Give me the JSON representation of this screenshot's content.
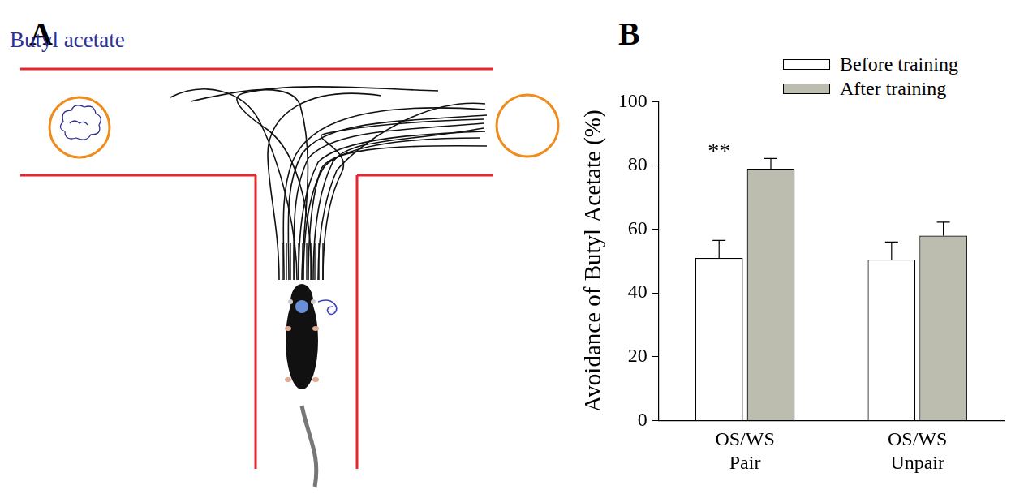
{
  "diagram": {
    "panel": "A",
    "odor_label": "Butyl acetate"
  },
  "chart_panel": "B",
  "chart_data": {
    "type": "bar",
    "ylabel": "Avoidance of Butyl Acetate (%)",
    "categories": [
      "OS/WS Pair",
      "OS/WS Unpair"
    ],
    "series": [
      {
        "name": "Before training",
        "color": "#ffffff",
        "values": [
          51,
          50.5
        ],
        "errors": [
          5.5,
          5.5
        ]
      },
      {
        "name": "After training",
        "color": "#bcbdae",
        "values": [
          79,
          58
        ],
        "errors": [
          3.2,
          4.2
        ]
      }
    ],
    "ylim": [
      0,
      100
    ],
    "yticks": [
      0,
      20,
      40,
      60,
      80,
      100
    ],
    "grid": false,
    "legend": "top",
    "annotations": [
      {
        "text": "**",
        "category": "OS/WS Pair"
      }
    ]
  }
}
